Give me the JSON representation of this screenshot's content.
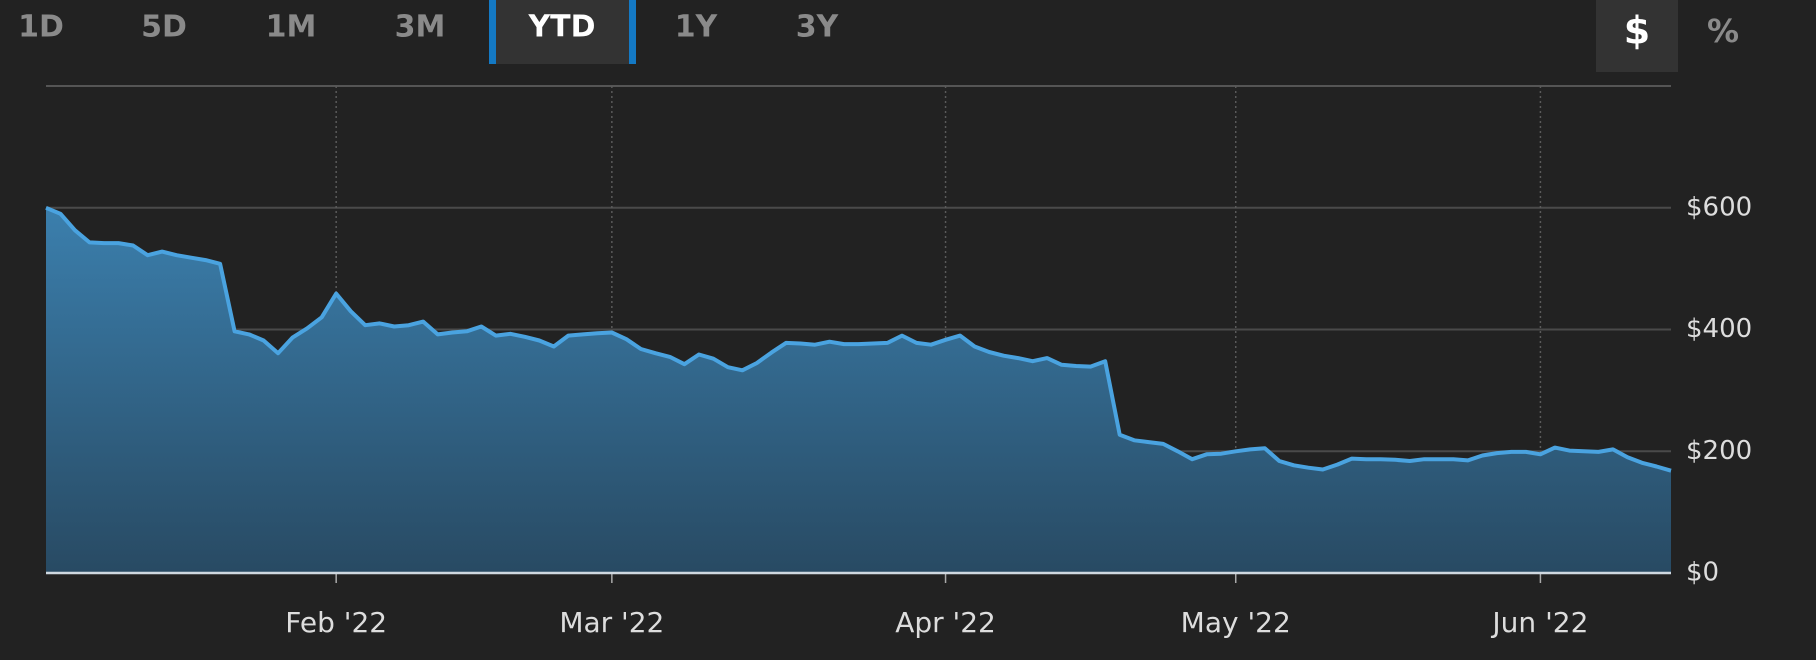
{
  "range_tabs": [
    {
      "label": "1D"
    },
    {
      "label": "5D"
    },
    {
      "label": "1M"
    },
    {
      "label": "3M"
    },
    {
      "label": "YTD",
      "selected": true
    },
    {
      "label": "1Y"
    },
    {
      "label": "3Y"
    }
  ],
  "unit_tabs": [
    {
      "label": "$",
      "selected": true
    },
    {
      "label": "%"
    }
  ],
  "chart_data": {
    "type": "area",
    "color": "#4aa3e0",
    "grid": true,
    "categories": [
      null,
      null,
      null,
      null,
      null,
      null,
      null,
      null,
      null,
      null,
      null,
      null,
      null,
      null,
      null,
      null,
      null,
      null,
      null,
      null,
      "Feb '22",
      null,
      null,
      null,
      null,
      null,
      null,
      null,
      null,
      null,
      null,
      null,
      null,
      null,
      null,
      null,
      null,
      null,
      null,
      "Mar '22",
      null,
      null,
      null,
      null,
      null,
      null,
      null,
      null,
      null,
      null,
      null,
      null,
      null,
      null,
      null,
      null,
      null,
      null,
      null,
      null,
      null,
      null,
      "Apr '22",
      null,
      null,
      null,
      null,
      null,
      null,
      null,
      null,
      null,
      null,
      null,
      null,
      null,
      null,
      null,
      null,
      null,
      null,
      null,
      "May '22",
      null,
      null,
      null,
      null,
      null,
      null,
      null,
      null,
      null,
      null,
      null,
      null,
      null,
      null,
      null,
      null,
      null,
      null,
      null,
      null,
      "Jun '22",
      null,
      null,
      null,
      null,
      null,
      null,
      null,
      null,
      null
    ],
    "values": [
      600,
      590,
      563,
      543,
      542,
      542,
      538,
      522,
      528,
      522,
      518,
      514,
      508,
      397,
      392,
      382,
      361,
      387,
      402,
      420,
      459,
      430,
      407,
      410,
      405,
      407,
      413,
      392,
      395,
      397,
      405,
      390,
      393,
      388,
      382,
      372,
      390,
      392,
      394,
      395,
      384,
      368,
      361,
      355,
      343,
      359,
      352,
      338,
      333,
      345,
      362,
      378,
      377,
      375,
      380,
      376,
      376,
      377,
      378,
      390,
      378,
      375,
      383,
      390,
      372,
      363,
      357,
      353,
      348,
      353,
      342,
      340,
      339,
      348,
      227,
      218,
      215,
      212,
      200,
      187,
      195,
      196,
      200,
      203,
      205,
      184,
      177,
      173,
      170,
      178,
      188,
      187,
      187,
      186,
      184,
      187,
      187,
      187,
      185,
      193,
      197,
      199,
      199,
      195,
      206,
      201,
      200,
      199,
      203,
      190,
      181,
      175,
      168
    ],
    "ylim": [
      0,
      800
    ],
    "yticks": [
      {
        "value": 0,
        "label": "$0"
      },
      {
        "value": 200,
        "label": "$200"
      },
      {
        "value": 400,
        "label": "$400"
      },
      {
        "value": 600,
        "label": "$600"
      }
    ]
  }
}
